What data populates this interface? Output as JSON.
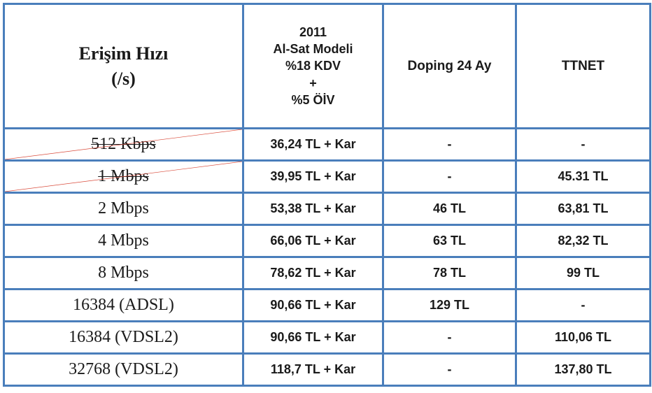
{
  "table": {
    "border_color": "#4a7ebb",
    "diag_color": "#d94a3a",
    "headers": {
      "speed": "Erişim Hızı\n(/s)",
      "model_lines": [
        "2011",
        "Al-Sat Modeli",
        "%18 KDV",
        "+",
        "%5 ÖİV"
      ],
      "doping": "Doping 24 Ay",
      "ttnet": "TTNET"
    },
    "rows": [
      {
        "speed": "512 Kbps",
        "model": "36,24 TL + Kar",
        "doping": "-",
        "ttnet": "-",
        "crossed": true
      },
      {
        "speed": "1 Mbps",
        "model": "39,95 TL + Kar",
        "doping": "-",
        "ttnet": "45.31 TL",
        "crossed": true
      },
      {
        "speed": "2 Mbps",
        "model": "53,38 TL + Kar",
        "doping": "46 TL",
        "ttnet": "63,81 TL",
        "crossed": false
      },
      {
        "speed": "4 Mbps",
        "model": "66,06 TL + Kar",
        "doping": "63 TL",
        "ttnet": "82,32 TL",
        "crossed": false
      },
      {
        "speed": "8 Mbps",
        "model": "78,62 TL + Kar",
        "doping": "78 TL",
        "ttnet": "99 TL",
        "crossed": false
      },
      {
        "speed": "16384 (ADSL)",
        "model": "90,66 TL + Kar",
        "doping": "129 TL",
        "ttnet": "-",
        "crossed": false
      },
      {
        "speed": "16384 (VDSL2)",
        "model": "90,66 TL + Kar",
        "doping": "-",
        "ttnet": "110,06 TL",
        "crossed": false
      },
      {
        "speed": "32768 (VDSL2)",
        "model": "118,7 TL + Kar",
        "doping": "-",
        "ttnet": "137,80 TL",
        "crossed": false
      }
    ],
    "fonts": {
      "header_speed_pt": 26,
      "header_other_pt": 18,
      "body_speed_pt": 24,
      "body_other_pt": 18
    }
  }
}
